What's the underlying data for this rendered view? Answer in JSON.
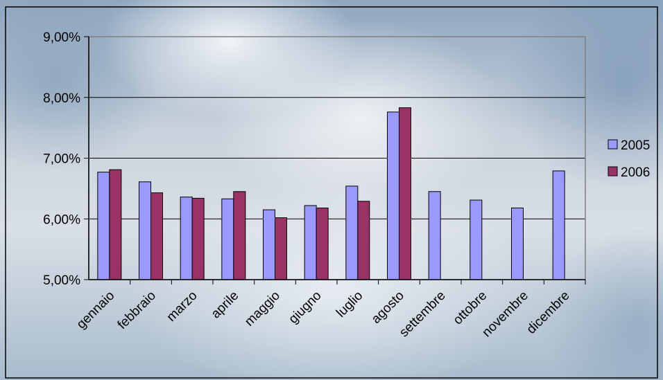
{
  "chart_data": {
    "type": "bar",
    "categories": [
      "gennaio",
      "febbraio",
      "marzo",
      "aprile",
      "maggio",
      "giugno",
      "luglio",
      "agosto",
      "settembre",
      "ottobre",
      "novembre",
      "dicembre"
    ],
    "series": [
      {
        "name": "2005",
        "color": "#9999ff",
        "values": [
          6.77,
          6.61,
          6.36,
          6.33,
          6.15,
          6.22,
          6.54,
          7.76,
          6.45,
          6.31,
          6.18,
          6.79
        ]
      },
      {
        "name": "2006",
        "color": "#993366",
        "values": [
          6.81,
          6.43,
          6.34,
          6.45,
          6.02,
          6.18,
          6.29,
          7.83,
          null,
          null,
          null,
          null
        ]
      }
    ],
    "yticks": [
      "5,00%",
      "6,00%",
      "7,00%",
      "8,00%",
      "9,00%"
    ],
    "ylim": [
      5,
      9
    ],
    "grid": true,
    "legend_position": "right",
    "title": "",
    "xlabel": "",
    "ylabel": ""
  }
}
